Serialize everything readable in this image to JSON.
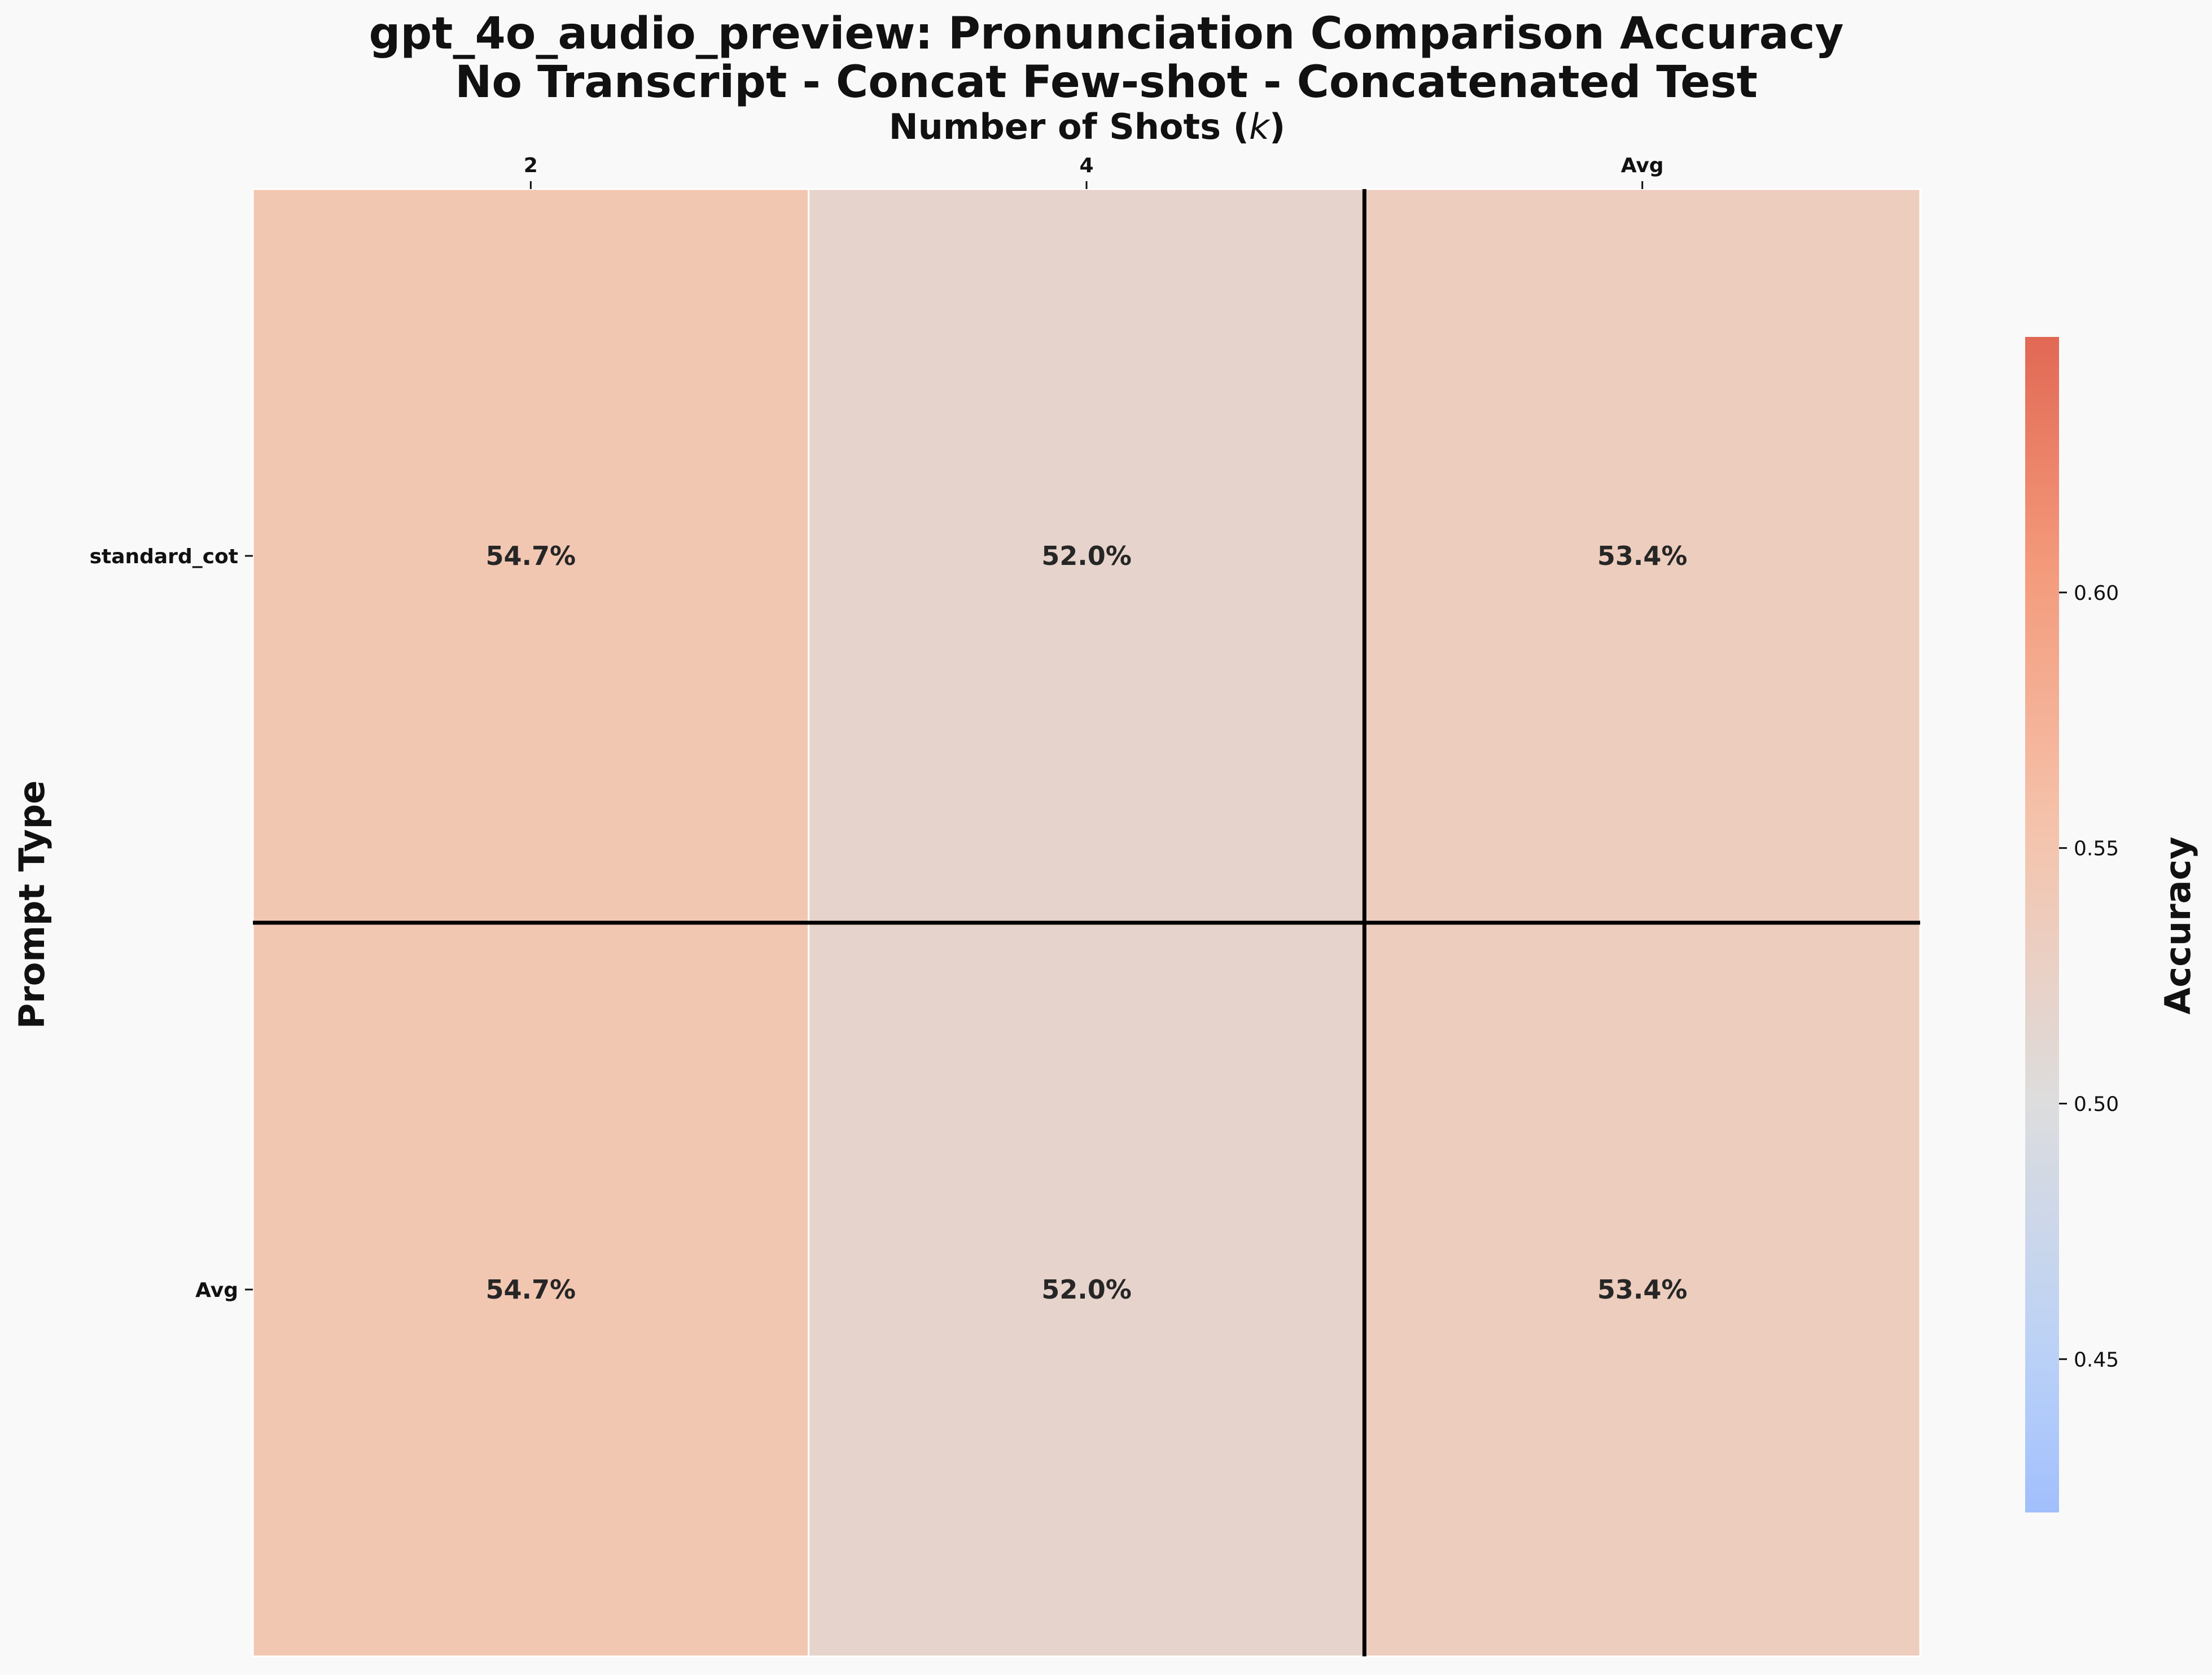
{
  "chart_data": {
    "type": "heatmap",
    "title_lines": [
      "gpt_4o_audio_preview: Pronunciation Comparison Accuracy",
      "No Transcript - Concat Few-shot - Concatenated Test"
    ],
    "xlabel": "Number of Shots (k)",
    "ylabel": "Prompt Type",
    "x_categories": [
      "2",
      "4",
      "Avg"
    ],
    "y_categories": [
      "standard_cot",
      "Avg"
    ],
    "values": [
      [
        0.547,
        0.52,
        0.534
      ],
      [
        0.547,
        0.52,
        0.534
      ]
    ],
    "cell_labels": [
      [
        "54.7%",
        "52.0%",
        "53.4%"
      ],
      [
        "54.7%",
        "52.0%",
        "53.4%"
      ]
    ],
    "x_axis_position": "top",
    "colorbar": {
      "label": "Accuracy",
      "colormap": "coolwarm",
      "vmin": 0.42,
      "vmax": 0.65,
      "ticks": [
        0.45,
        0.5,
        0.55,
        0.6
      ],
      "tick_labels": [
        "0.45",
        "0.50",
        "0.55",
        "0.60"
      ]
    },
    "separator_lines": {
      "before_column": "Avg",
      "before_row": "Avg",
      "color": "#000000"
    },
    "grid": false
  }
}
